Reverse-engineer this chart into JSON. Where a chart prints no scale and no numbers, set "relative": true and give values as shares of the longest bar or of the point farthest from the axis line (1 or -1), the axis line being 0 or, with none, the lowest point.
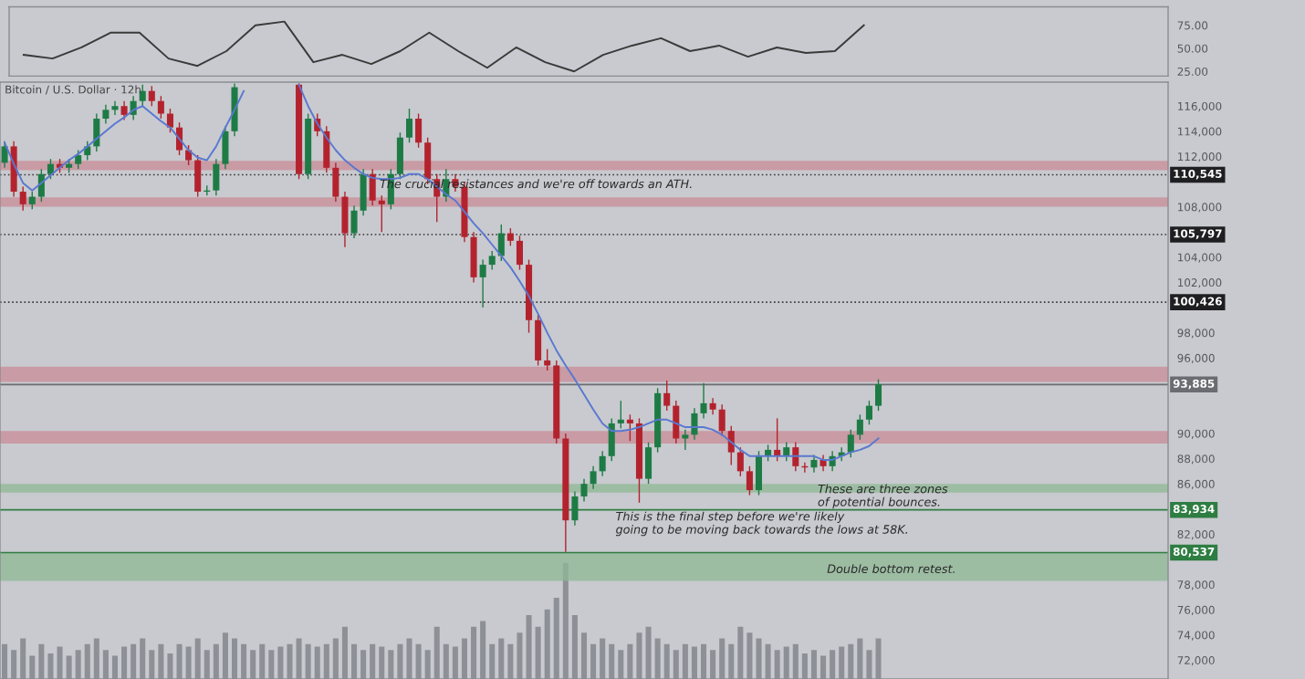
{
  "chart_data": [
    {
      "type": "line",
      "categories": [
        null,
        null,
        null,
        null,
        null,
        null,
        null,
        null,
        null,
        null,
        null,
        null,
        null,
        null,
        null,
        null,
        null,
        null,
        null,
        null,
        null,
        null,
        null,
        null,
        null,
        null,
        null,
        null,
        null,
        null,
        null,
        null,
        null,
        null,
        null,
        null,
        null,
        null,
        null,
        null
      ],
      "series": [
        {
          "color": "#3a3a3a",
          "values": [
            43,
            39,
            51,
            67,
            67,
            39,
            31,
            47,
            75,
            79,
            35,
            43,
            33,
            47,
            67,
            47,
            29,
            51,
            35,
            25,
            43,
            53,
            61,
            47,
            53,
            41,
            51,
            45,
            47,
            75,
            null,
            null,
            null,
            null,
            null,
            null,
            null,
            null,
            null,
            null
          ]
        }
      ],
      "ylim": [
        20,
        95
      ],
      "yticks": [
        {
          "value": 75,
          "label": "75.00"
        },
        {
          "value": 50,
          "label": "50.00"
        },
        {
          "value": 25,
          "label": "25.00"
        }
      ],
      "tick_labels": "y",
      "grid": false
    },
    {
      "type": "candlestick",
      "title": "Bitcoin / U.S. Dollar · 12h",
      "categories": [
        null,
        null,
        null,
        null,
        null,
        null,
        null,
        null,
        null,
        null,
        null,
        null,
        null,
        null,
        null,
        null,
        null,
        null,
        null,
        null,
        null,
        null,
        null,
        null,
        null,
        null,
        null,
        null,
        null,
        null,
        null,
        null,
        null,
        null,
        null,
        null,
        null,
        null,
        null,
        null,
        null,
        null,
        null,
        null,
        null,
        null,
        null,
        null,
        null,
        null,
        null,
        null,
        null,
        null,
        null,
        null,
        null,
        null,
        null,
        null,
        null,
        null,
        null,
        null,
        null,
        null,
        null,
        null,
        null,
        null,
        null,
        null,
        null,
        null,
        null,
        null,
        null,
        null,
        null,
        null,
        null,
        null,
        null,
        null,
        null,
        null,
        null,
        null,
        null,
        null,
        null,
        null,
        null,
        null,
        null,
        null,
        null,
        null,
        null,
        null,
        null,
        null,
        null,
        null,
        null,
        null,
        null,
        null,
        null,
        null,
        null,
        null,
        null,
        null,
        null,
        null,
        null,
        null,
        null,
        null,
        null,
        null,
        null,
        null,
        null,
        null,
        null
      ],
      "ohlc": [
        [
          111500,
          113200,
          111100,
          112800
        ],
        [
          112800,
          113200,
          108800,
          109200
        ],
        [
          109200,
          109600,
          107700,
          108200
        ],
        [
          108200,
          109200,
          107800,
          108800
        ],
        [
          108800,
          111000,
          108400,
          110600
        ],
        [
          110600,
          111800,
          110200,
          111400
        ],
        [
          111400,
          111800,
          110700,
          111100
        ],
        [
          111100,
          111800,
          110700,
          111400
        ],
        [
          111400,
          112500,
          111000,
          112100
        ],
        [
          112100,
          113200,
          111700,
          112800
        ],
        [
          112800,
          115400,
          112400,
          115000
        ],
        [
          115000,
          116100,
          114600,
          115700
        ],
        [
          115700,
          116400,
          115300,
          116000
        ],
        [
          116000,
          116400,
          114900,
          115300
        ],
        [
          115300,
          116800,
          114900,
          116400
        ],
        [
          116400,
          117700,
          116000,
          117200
        ],
        [
          117200,
          117600,
          116000,
          116400
        ],
        [
          116400,
          116800,
          115000,
          115400
        ],
        [
          115400,
          115800,
          113900,
          114300
        ],
        [
          114300,
          114700,
          112100,
          112500
        ],
        [
          112500,
          112900,
          111300,
          111700
        ],
        [
          111700,
          112100,
          108800,
          109200
        ],
        [
          109200,
          109700,
          108900,
          109300
        ],
        [
          109300,
          111800,
          108900,
          111400
        ],
        [
          111400,
          114400,
          111000,
          114000
        ],
        [
          114000,
          117800,
          113600,
          117500
        ],
        null,
        null,
        null,
        null,
        null,
        null,
        [
          117700,
          117800,
          110200,
          110600
        ],
        [
          110600,
          115400,
          110200,
          115000
        ],
        [
          115000,
          115400,
          113600,
          114000
        ],
        [
          114000,
          114400,
          110700,
          111100
        ],
        [
          111100,
          111500,
          108400,
          108800
        ],
        [
          108800,
          109200,
          104800,
          105900
        ],
        [
          105900,
          108100,
          105500,
          107700
        ],
        [
          107700,
          111000,
          107300,
          110600
        ],
        [
          110600,
          111000,
          108100,
          108500
        ],
        [
          108500,
          108900,
          106000,
          108200
        ],
        [
          108200,
          111000,
          107800,
          110600
        ],
        [
          110600,
          113900,
          110200,
          113500
        ],
        [
          113500,
          115800,
          113100,
          115000
        ],
        [
          115000,
          115400,
          112700,
          113100
        ],
        [
          113100,
          113500,
          109800,
          110200
        ],
        [
          110200,
          110600,
          106800,
          108800
        ],
        [
          108800,
          111000,
          108400,
          110200
        ],
        [
          110200,
          110600,
          109200,
          109600
        ],
        [
          109600,
          110000,
          105200,
          105600
        ],
        [
          105600,
          106000,
          102000,
          102400
        ],
        [
          102400,
          103800,
          100000,
          103400
        ],
        [
          103400,
          104500,
          103000,
          104100
        ],
        [
          104100,
          106600,
          103700,
          105900
        ],
        [
          105900,
          106300,
          104900,
          105300
        ],
        [
          105300,
          105700,
          103000,
          103400
        ],
        [
          103400,
          103800,
          98000,
          99000
        ],
        [
          99000,
          99400,
          95400,
          95800
        ],
        [
          95800,
          96700,
          95000,
          95400
        ],
        [
          95400,
          95800,
          89200,
          89600
        ],
        [
          89600,
          90000,
          80600,
          83100
        ],
        [
          83100,
          85400,
          82700,
          85000
        ],
        [
          85000,
          86400,
          84600,
          86000
        ],
        [
          86000,
          87400,
          85600,
          87000
        ],
        [
          87000,
          88600,
          86600,
          88200
        ],
        [
          88200,
          91200,
          87800,
          90800
        ],
        [
          90800,
          92600,
          90400,
          91100
        ],
        [
          91100,
          91500,
          89400,
          90800
        ],
        [
          90800,
          91200,
          84500,
          86400
        ],
        [
          86400,
          89300,
          86000,
          88900
        ],
        [
          88900,
          93600,
          88500,
          93200
        ],
        [
          93200,
          94200,
          91800,
          92200
        ],
        [
          92200,
          92600,
          89200,
          89600
        ],
        [
          89600,
          90300,
          88700,
          89900
        ],
        [
          89900,
          92000,
          89500,
          91600
        ],
        [
          91600,
          94000,
          91200,
          92400
        ],
        [
          92400,
          92800,
          91500,
          91900
        ],
        [
          91900,
          92300,
          89800,
          90200
        ],
        [
          90200,
          90600,
          87500,
          88500
        ],
        [
          88500,
          88900,
          86600,
          87000
        ],
        [
          87000,
          87400,
          85100,
          85500
        ],
        [
          85500,
          88600,
          85100,
          88200
        ],
        [
          88200,
          89100,
          87800,
          88700
        ],
        [
          88700,
          91200,
          87800,
          88200
        ],
        [
          88200,
          89300,
          87800,
          88900
        ],
        [
          88900,
          89300,
          87000,
          87400
        ],
        [
          87400,
          87700,
          86900,
          87300
        ],
        [
          87300,
          88300,
          86900,
          87900
        ],
        [
          87900,
          88300,
          87000,
          87400
        ],
        [
          87400,
          88600,
          87000,
          88200
        ],
        [
          88200,
          88900,
          87800,
          88500
        ],
        [
          88500,
          90300,
          88100,
          89900
        ],
        [
          89900,
          91500,
          89500,
          91100
        ],
        [
          91100,
          92600,
          90700,
          92200
        ],
        [
          92200,
          94300,
          91800,
          93900
        ],
        null,
        null,
        null,
        null,
        null,
        null,
        null,
        null,
        null,
        null,
        null,
        null,
        null,
        null,
        null,
        null,
        null,
        null,
        null,
        null,
        null,
        null,
        null,
        null,
        null,
        null,
        null,
        null,
        null,
        null,
        null
      ],
      "colors": [
        "#1e7b45",
        "#b3232e",
        "#b3232e",
        "#1e7b45",
        "#1e7b45",
        "#1e7b45",
        "#b3232e",
        "#1e7b45",
        "#1e7b45",
        "#1e7b45",
        "#1e7b45",
        "#1e7b45",
        "#1e7b45",
        "#b3232e",
        "#1e7b45",
        "#1e7b45",
        "#b3232e",
        "#b3232e",
        "#b3232e",
        "#b3232e",
        "#b3232e",
        "#b3232e",
        "#1e7b45",
        "#1e7b45",
        "#1e7b45",
        "#1e7b45",
        null,
        null,
        null,
        null,
        null,
        null,
        "#b3232e",
        "#1e7b45",
        "#b3232e",
        "#b3232e",
        "#b3232e",
        "#b3232e",
        "#1e7b45",
        "#1e7b45",
        "#b3232e",
        "#b3232e",
        "#1e7b45",
        "#1e7b45",
        "#1e7b45",
        "#b3232e",
        "#b3232e",
        "#b3232e",
        "#1e7b45",
        "#b3232e",
        "#b3232e",
        "#b3232e",
        "#1e7b45",
        "#1e7b45",
        "#1e7b45",
        "#b3232e",
        "#b3232e",
        "#b3232e",
        "#b3232e",
        "#b3232e",
        "#b3232e",
        "#b3232e",
        "#1e7b45",
        "#1e7b45",
        "#1e7b45",
        "#1e7b45",
        "#1e7b45",
        "#1e7b45",
        "#b3232e",
        "#b3232e",
        "#1e7b45",
        "#1e7b45",
        "#b3232e",
        "#b3232e",
        "#1e7b45",
        "#1e7b45",
        "#1e7b45",
        "#b3232e",
        "#b3232e",
        "#b3232e",
        "#b3232e",
        "#b3232e",
        "#1e7b45",
        "#1e7b45",
        "#b3232e",
        "#1e7b45",
        "#b3232e",
        "#b3232e",
        "#1e7b45",
        "#b3232e",
        "#1e7b45",
        "#1e7b45",
        "#1e7b45",
        "#1e7b45",
        "#1e7b45",
        "#1e7b45",
        null,
        null,
        null,
        null,
        null,
        null,
        null,
        null,
        null,
        null,
        null,
        null,
        null,
        null,
        null,
        null,
        null,
        null,
        null,
        null,
        null,
        null,
        null,
        null,
        null,
        null,
        null,
        null,
        null,
        null,
        null
      ],
      "series": [
        {
          "type": "line",
          "color": "#5a78d0",
          "values": [
            113100,
            111400,
            109900,
            109300,
            109900,
            110500,
            111100,
            111700,
            112200,
            112800,
            113400,
            114000,
            114600,
            115100,
            115700,
            116000,
            115400,
            114800,
            114300,
            113400,
            112500,
            111900,
            111700,
            112800,
            114300,
            115700,
            117200,
            null,
            null,
            null,
            null,
            null,
            117700,
            116000,
            114600,
            113500,
            112500,
            111700,
            111100,
            110600,
            110300,
            110200,
            110200,
            110300,
            110600,
            110600,
            110200,
            109600,
            109000,
            108500,
            107600,
            106700,
            105900,
            105000,
            104100,
            103200,
            102100,
            100900,
            99500,
            98000,
            96600,
            95400,
            94300,
            93100,
            91900,
            90800,
            90200,
            90200,
            90300,
            90500,
            90800,
            91100,
            91100,
            90800,
            90500,
            90500,
            90500,
            90300,
            89900,
            89300,
            88700,
            88200,
            88200,
            88200,
            88200,
            88200,
            88200,
            88200,
            88200,
            87900,
            87900,
            88200,
            88500,
            88700,
            89000,
            89600,
            null,
            null,
            null,
            null,
            null,
            null,
            null,
            null,
            null,
            null,
            null,
            null,
            null,
            null,
            null,
            null,
            null,
            null,
            null,
            null,
            null,
            null,
            null,
            null,
            null,
            null,
            null,
            null,
            null,
            null,
            null
          ]
        }
      ],
      "ylim": [
        70500,
        117900
      ],
      "yticks": [
        {
          "value": 116000,
          "label": "116,000"
        },
        {
          "value": 114000,
          "label": "114,000"
        },
        {
          "value": 112000,
          "label": "112,000"
        },
        {
          "value": 108000,
          "label": "108,000"
        },
        {
          "value": 104000,
          "label": "104,000"
        },
        {
          "value": 102000,
          "label": "102,000"
        },
        {
          "value": 98000,
          "label": "98,000"
        },
        {
          "value": 96000,
          "label": "96,000"
        },
        {
          "value": 90000,
          "label": "90,000"
        },
        {
          "value": 88000,
          "label": "88,000"
        },
        {
          "value": 86000,
          "label": "86,000"
        },
        {
          "value": 82000,
          "label": "82,000"
        },
        {
          "value": 78000,
          "label": "78,000"
        },
        {
          "value": 76000,
          "label": "76,000"
        },
        {
          "value": 74000,
          "label": "74,000"
        },
        {
          "value": 72000,
          "label": "72,000"
        }
      ],
      "tick_labels": "y",
      "grid": false,
      "ref_lines": [
        {
          "axis": "y",
          "value": 110545,
          "label": "110,545",
          "color": "#3a3a3a",
          "line_style": "dotted"
        },
        {
          "axis": "y",
          "value": 105797,
          "label": "105,797",
          "color": "#3a3a3a",
          "line_style": "dotted"
        },
        {
          "axis": "y",
          "value": 100426,
          "label": "100,426",
          "color": "#3a3a3a",
          "line_style": "dotted"
        },
        {
          "axis": "y",
          "value": 93885,
          "label": "93,885",
          "color": "#6a6c72",
          "line_style": "solid"
        },
        {
          "axis": "y",
          "value": 83934,
          "label": "83,934",
          "color": "#2e7d42",
          "line_style": "solid"
        },
        {
          "axis": "y",
          "value": 80537,
          "label": "80,537",
          "color": "#2e7d42",
          "line_style": "solid"
        }
      ],
      "bands": [
        {
          "axis": "y",
          "from": 94100,
          "to": 95300,
          "color": "#c98b95"
        },
        {
          "axis": "y",
          "from": 89200,
          "to": 90200,
          "color": "#c98b95"
        },
        {
          "axis": "y",
          "from": 110900,
          "to": 111650,
          "color": "#c98b95"
        },
        {
          "axis": "y",
          "from": 108000,
          "to": 108750,
          "color": "#c98b95"
        },
        {
          "axis": "y",
          "from": 85300,
          "to": 86000,
          "color": "#8fb894"
        },
        {
          "axis": "y",
          "from": 78300,
          "to": 80500,
          "color": "#8fb894"
        }
      ],
      "annotations": [
        "The crucial resistances and we're off towards an ATH.",
        "These are three zones\nof potential bounces.",
        "This is the final step before we're likely\ngoing to be moving back towards the lows at 58K.",
        "Double bottom retest."
      ]
    },
    {
      "type": "bar",
      "relative": true,
      "tick_labels": false,
      "categories": [
        null,
        null,
        null,
        null,
        null,
        null,
        null,
        null,
        null,
        null,
        null,
        null,
        null,
        null,
        null,
        null,
        null,
        null,
        null,
        null,
        null,
        null,
        null,
        null,
        null,
        null,
        null,
        null,
        null,
        null,
        null,
        null,
        null,
        null,
        null,
        null,
        null,
        null,
        null,
        null,
        null,
        null,
        null,
        null,
        null,
        null,
        null,
        null,
        null,
        null,
        null,
        null,
        null,
        null,
        null,
        null,
        null,
        null,
        null,
        null,
        null,
        null,
        null,
        null,
        null,
        null,
        null,
        null,
        null,
        null,
        null,
        null,
        null,
        null,
        null,
        null,
        null,
        null,
        null,
        null,
        null,
        null,
        null,
        null,
        null,
        null,
        null,
        null,
        null,
        null,
        null,
        null,
        null,
        null,
        null,
        null,
        null,
        null,
        null,
        null,
        null,
        null,
        null,
        null,
        null,
        null,
        null,
        null,
        null,
        null,
        null,
        null,
        null,
        null,
        null,
        null,
        null,
        null,
        null,
        null,
        null,
        null,
        null,
        null,
        null,
        null,
        null
      ],
      "series": [
        {
          "color": "#8e9097",
          "values": [
            0.3,
            0.25,
            0.35,
            0.2,
            0.3,
            0.22,
            0.28,
            0.2,
            0.25,
            0.3,
            0.35,
            0.25,
            0.2,
            0.28,
            0.3,
            0.35,
            0.25,
            0.3,
            0.22,
            0.3,
            0.28,
            0.35,
            0.25,
            0.3,
            0.4,
            0.35,
            0.3,
            0.25,
            0.3,
            0.25,
            0.28,
            0.3,
            0.35,
            0.3,
            0.28,
            0.3,
            0.35,
            0.45,
            0.3,
            0.25,
            0.3,
            0.28,
            0.25,
            0.3,
            0.35,
            0.3,
            0.25,
            0.45,
            0.3,
            0.28,
            0.35,
            0.45,
            0.5,
            0.3,
            0.35,
            0.3,
            0.4,
            0.55,
            0.45,
            0.6,
            0.7,
            1.0,
            0.55,
            0.4,
            0.3,
            0.35,
            0.3,
            0.25,
            0.3,
            0.4,
            0.45,
            0.35,
            0.3,
            0.25,
            0.3,
            0.28,
            0.3,
            0.25,
            0.35,
            0.3,
            0.45,
            0.4,
            0.35,
            0.3,
            0.25,
            0.28,
            0.3,
            0.22,
            0.25,
            0.2,
            0.25,
            0.28,
            0.3,
            0.35,
            0.25,
            0.35,
            null,
            null,
            null,
            null,
            null,
            null,
            null,
            null,
            null,
            null,
            null,
            null,
            null,
            null,
            null,
            null,
            null,
            null,
            null,
            null,
            null,
            null,
            null,
            null,
            null,
            null,
            null,
            null,
            null,
            null,
            null
          ]
        }
      ]
    }
  ]
}
